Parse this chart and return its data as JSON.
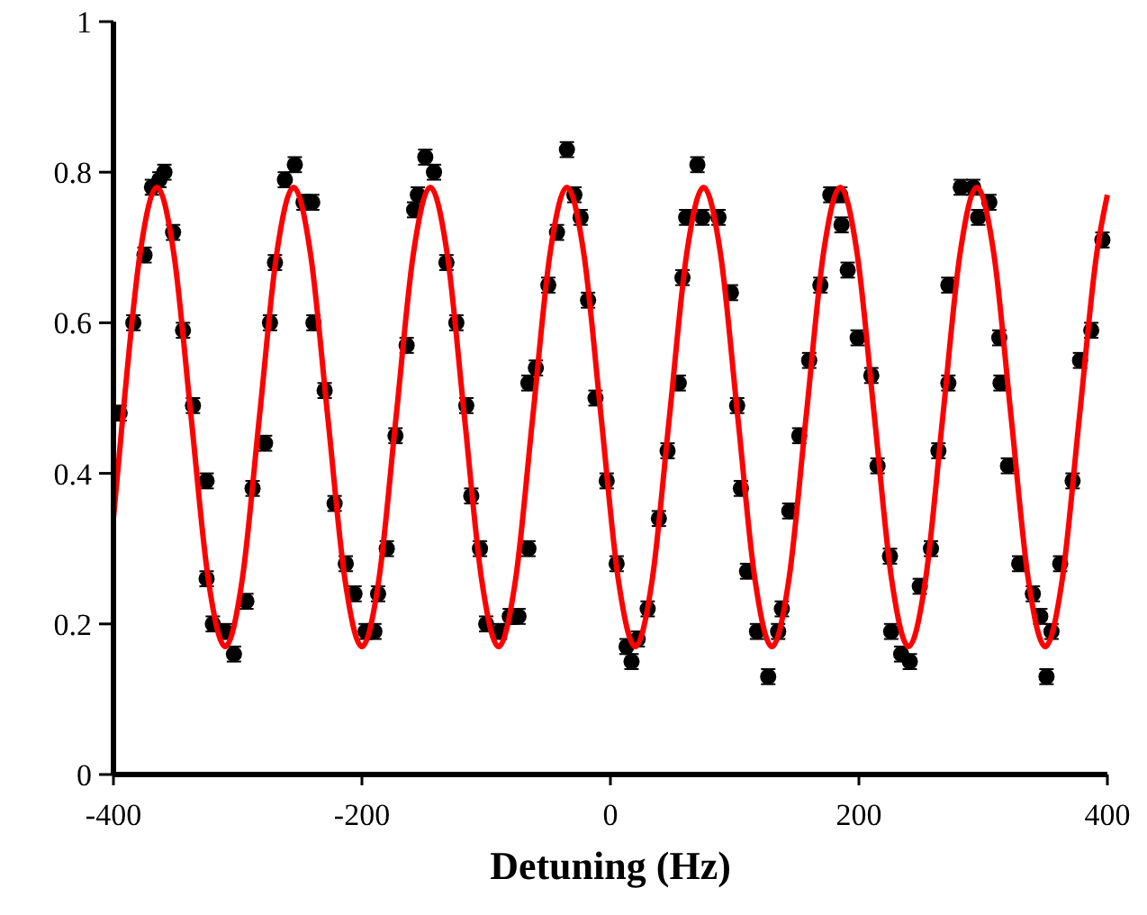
{
  "chart_data": {
    "type": "scatter",
    "xlabel": "Detuning (Hz)",
    "xlim": [
      -400,
      400
    ],
    "xticks": [
      -400,
      -200,
      0,
      200,
      400
    ],
    "ylim": [
      0,
      1
    ],
    "yticks": [
      0,
      0.2,
      0.4,
      0.6,
      0.8,
      1
    ],
    "grid": false,
    "series": [
      {
        "marker": "circle",
        "color": "#000000",
        "x": [
          -395,
          -384,
          -375,
          -369,
          -363,
          -359,
          -352,
          -344,
          -336,
          -325,
          -325,
          -320,
          -310,
          -303,
          -293,
          -288,
          -278,
          -274,
          -270,
          -262,
          -254,
          -247,
          -240,
          -239,
          -230,
          -222,
          -213,
          -206,
          -197,
          -190,
          -187,
          -180,
          -173,
          -164,
          -158,
          -155,
          -149,
          -142,
          -132,
          -124,
          -116,
          -112,
          -105,
          -100,
          -89,
          -81,
          -74,
          -66,
          -66,
          -60,
          -50,
          -43,
          -35,
          -29,
          -24,
          -18,
          -12,
          -3,
          5,
          13,
          17,
          22,
          30,
          39,
          46,
          55,
          58,
          61,
          70,
          74,
          87,
          97,
          102,
          105,
          110,
          118,
          127,
          135,
          138,
          144,
          152,
          160,
          169,
          177,
          185,
          186,
          191,
          199,
          210,
          215,
          225,
          226,
          234,
          241,
          249,
          258,
          264,
          272,
          272,
          282,
          292,
          296,
          305,
          313,
          314,
          320,
          329,
          340,
          346,
          355,
          351,
          362,
          372,
          378,
          387,
          396
        ],
        "values": [
          0.48,
          0.6,
          0.69,
          0.78,
          0.79,
          0.8,
          0.72,
          0.59,
          0.49,
          0.39,
          0.26,
          0.2,
          0.19,
          0.16,
          0.23,
          0.38,
          0.44,
          0.6,
          0.68,
          0.79,
          0.81,
          0.76,
          0.76,
          0.6,
          0.51,
          0.36,
          0.28,
          0.24,
          0.19,
          0.19,
          0.24,
          0.3,
          0.45,
          0.57,
          0.75,
          0.77,
          0.82,
          0.8,
          0.68,
          0.6,
          0.49,
          0.37,
          0.3,
          0.2,
          0.19,
          0.21,
          0.21,
          0.3,
          0.52,
          0.54,
          0.65,
          0.72,
          0.83,
          0.77,
          0.74,
          0.63,
          0.5,
          0.39,
          0.28,
          0.17,
          0.15,
          0.18,
          0.22,
          0.34,
          0.43,
          0.52,
          0.66,
          0.74,
          0.81,
          0.74,
          0.74,
          0.64,
          0.49,
          0.38,
          0.27,
          0.19,
          0.13,
          0.19,
          0.22,
          0.35,
          0.45,
          0.55,
          0.65,
          0.77,
          0.77,
          0.73,
          0.67,
          0.58,
          0.53,
          0.41,
          0.29,
          0.19,
          0.16,
          0.15,
          0.25,
          0.3,
          0.43,
          0.52,
          0.65,
          0.78,
          0.78,
          0.74,
          0.76,
          0.58,
          0.52,
          0.41,
          0.28,
          0.24,
          0.21,
          0.19,
          0.13,
          0.28,
          0.39,
          0.55,
          0.59,
          0.71
        ],
        "errors": [
          0.01,
          0.01,
          0.01,
          0.01,
          0.01,
          0.01,
          0.01,
          0.01,
          0.01,
          0.01,
          0.01,
          0.01,
          0.01,
          0.01,
          0.01,
          0.01,
          0.01,
          0.01,
          0.01,
          0.01,
          0.01,
          0.01,
          0.01,
          0.01,
          0.01,
          0.01,
          0.01,
          0.01,
          0.01,
          0.01,
          0.01,
          0.01,
          0.01,
          0.01,
          0.01,
          0.01,
          0.01,
          0.01,
          0.01,
          0.01,
          0.01,
          0.01,
          0.01,
          0.01,
          0.01,
          0.01,
          0.01,
          0.01,
          0.01,
          0.01,
          0.01,
          0.01,
          0.01,
          0.01,
          0.01,
          0.01,
          0.01,
          0.01,
          0.01,
          0.01,
          0.01,
          0.01,
          0.01,
          0.01,
          0.01,
          0.01,
          0.01,
          0.01,
          0.01,
          0.01,
          0.01,
          0.01,
          0.01,
          0.01,
          0.01,
          0.01,
          0.01,
          0.01,
          0.01,
          0.01,
          0.01,
          0.01,
          0.01,
          0.01,
          0.01,
          0.01,
          0.01,
          0.01,
          0.01,
          0.01,
          0.01,
          0.01,
          0.01,
          0.01,
          0.01,
          0.01,
          0.01,
          0.01,
          0.01,
          0.01,
          0.01,
          0.01,
          0.01,
          0.01,
          0.01,
          0.01,
          0.01,
          0.01,
          0.01,
          0.01,
          0.01,
          0.01,
          0.01,
          0.01,
          0.01,
          0.01
        ]
      },
      {
        "type": "line",
        "color": "#ff0000",
        "x": [
          -400,
          -392.5,
          -378.75,
          -365,
          -351.25,
          -337.5,
          -323.75,
          -310,
          -296.25,
          -282.5,
          -268.75,
          -255,
          -241.25,
          -227.5,
          -213.75,
          -200,
          -186.25,
          -172.5,
          -158.75,
          -145,
          -131.25,
          -117.5,
          -103.75,
          -90,
          -76.25,
          -62.5,
          -48.75,
          -35,
          -21.25,
          -7.5,
          6.25,
          20,
          33.75,
          47.5,
          61.25,
          75,
          88.75,
          102.5,
          116.25,
          130,
          143.75,
          157.5,
          171.25,
          185,
          198.75,
          212.5,
          226.25,
          240,
          253.75,
          267.5,
          281.25,
          295,
          308.75,
          322.5,
          336.25,
          350,
          363.75,
          377.5,
          391.25,
          400
        ],
        "values": [
          0.34,
          0.475,
          0.69,
          0.78,
          0.69,
          0.475,
          0.26,
          0.17,
          0.26,
          0.475,
          0.69,
          0.78,
          0.69,
          0.475,
          0.26,
          0.17,
          0.26,
          0.475,
          0.69,
          0.78,
          0.69,
          0.475,
          0.26,
          0.17,
          0.26,
          0.475,
          0.69,
          0.78,
          0.69,
          0.475,
          0.26,
          0.17,
          0.26,
          0.475,
          0.69,
          0.78,
          0.69,
          0.475,
          0.26,
          0.17,
          0.26,
          0.475,
          0.69,
          0.78,
          0.69,
          0.475,
          0.26,
          0.17,
          0.26,
          0.475,
          0.69,
          0.78,
          0.69,
          0.475,
          0.26,
          0.17,
          0.26,
          0.475,
          0.69,
          0.77
        ]
      }
    ]
  }
}
